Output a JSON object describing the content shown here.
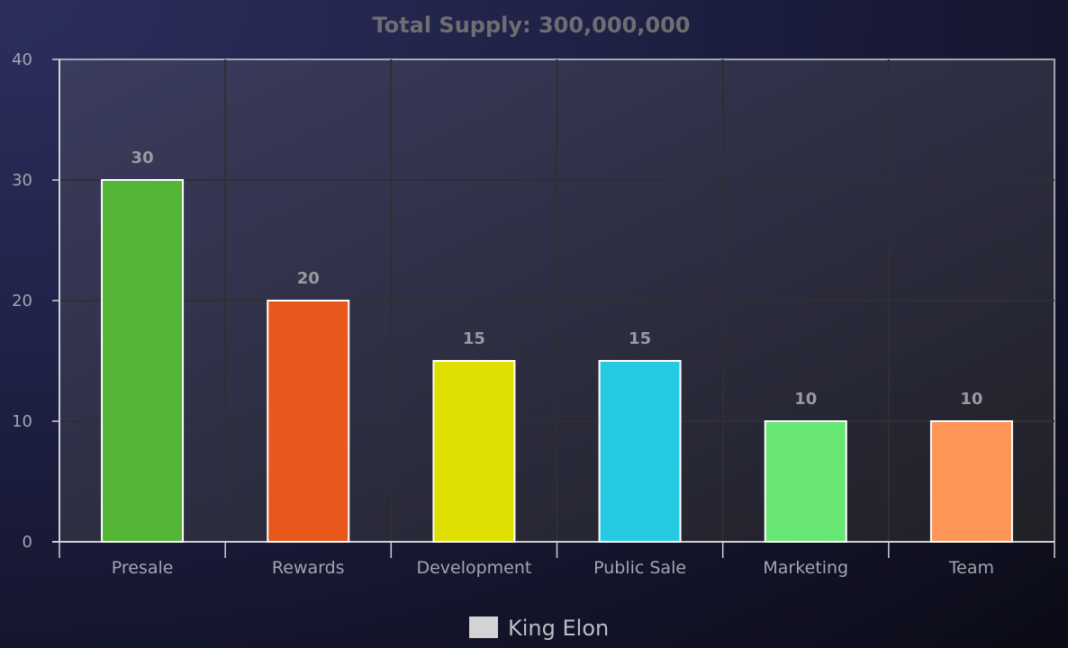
{
  "chart_data": {
    "type": "bar",
    "title": "Total Supply: 300,000,000",
    "categories": [
      "Presale",
      "Rewards",
      "Development",
      "Public Sale",
      "Marketing",
      "Team"
    ],
    "series": [
      {
        "name": "King Elon",
        "values": [
          30,
          20,
          15,
          15,
          10,
          10
        ],
        "colors": [
          "#52b535",
          "#e8581c",
          "#dde000",
          "#26cbe3",
          "#67e674",
          "#ff9457"
        ]
      }
    ],
    "xlabel": "",
    "ylabel": "",
    "ylim": [
      0,
      40
    ],
    "yticks": [
      0,
      10,
      20,
      30,
      40
    ],
    "grid": true,
    "data_labels": true,
    "legend": {
      "position": "bottom",
      "swatch_color": "#d3d3d3"
    }
  }
}
